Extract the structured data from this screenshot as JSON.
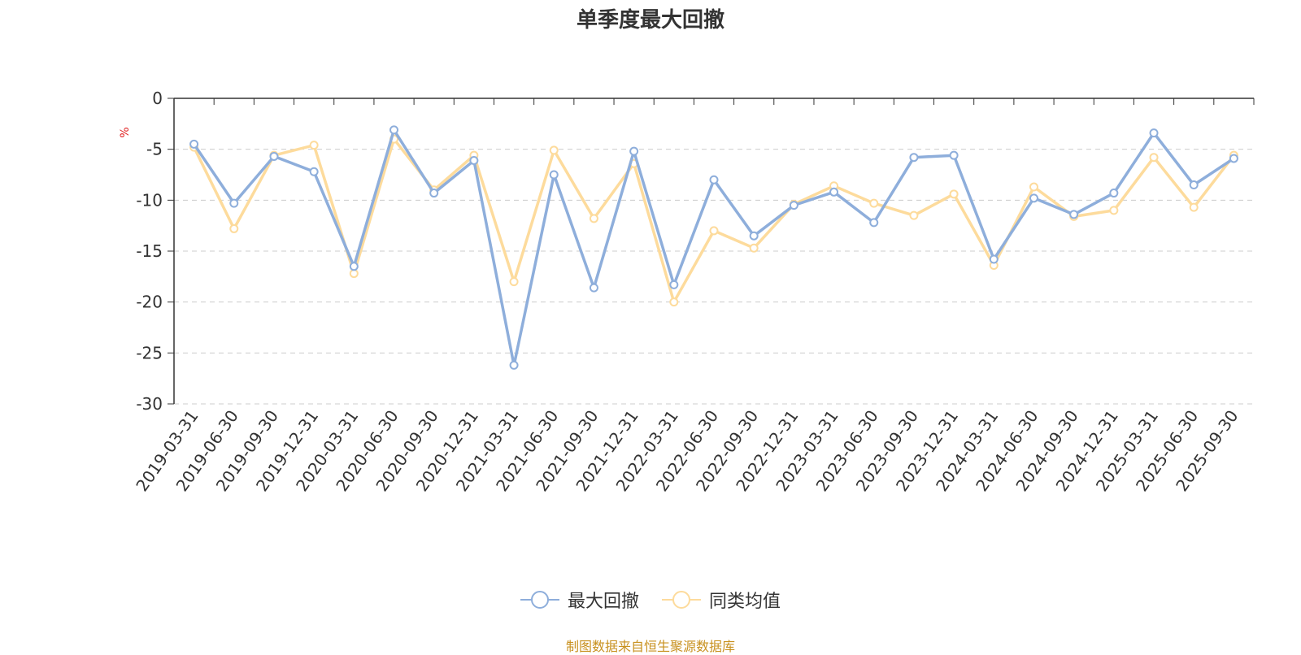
{
  "colors": {
    "series1": "#8eaedb",
    "series2": "#fddb9c",
    "axis": "#333333",
    "grid": "#cccccc",
    "unit": "#e02020",
    "source": "#c8911f"
  },
  "footer": {
    "source": "制图数据来自恒生聚源数据库"
  },
  "chart_data": {
    "type": "line",
    "title": "单季度最大回撤",
    "ylabel": "%",
    "ylim": [
      -30,
      0
    ],
    "yticks": [
      0,
      -5,
      -10,
      -15,
      -20,
      -25,
      -30
    ],
    "grid": true,
    "legend_position": "bottom",
    "categories": [
      "2019-03-31",
      "2019-06-30",
      "2019-09-30",
      "2019-12-31",
      "2020-03-31",
      "2020-06-30",
      "2020-09-30",
      "2020-12-31",
      "2021-03-31",
      "2021-06-30",
      "2021-09-30",
      "2021-12-31",
      "2022-03-31",
      "2022-06-30",
      "2022-09-30",
      "2022-12-31",
      "2023-03-31",
      "2023-06-30",
      "2023-09-30",
      "2023-12-31",
      "2024-03-31",
      "2024-06-30",
      "2024-09-30",
      "2024-12-31",
      "2025-03-31",
      "2025-06-30",
      "2025-09-30"
    ],
    "series": [
      {
        "name": "最大回撤",
        "values": [
          -4.5,
          -10.3,
          -5.7,
          -7.2,
          -16.5,
          -3.1,
          -9.3,
          -6.1,
          -26.2,
          -7.5,
          -18.6,
          -5.2,
          -18.3,
          -8.0,
          -13.5,
          -10.5,
          -9.2,
          -12.2,
          -5.8,
          -5.6,
          -15.8,
          -9.8,
          -11.4,
          -9.3,
          -3.4,
          -8.5,
          -5.9
        ]
      },
      {
        "name": "同类均值",
        "values": [
          -4.8,
          -12.8,
          -5.6,
          -4.6,
          -17.2,
          -4.0,
          -9.0,
          -5.6,
          -18.0,
          -5.1,
          -11.8,
          -6.4,
          -20.0,
          -13.0,
          -14.7,
          -10.4,
          -8.6,
          -10.3,
          -11.5,
          -9.4,
          -16.4,
          -8.7,
          -11.6,
          -11.0,
          -5.8,
          -10.7,
          -5.6
        ]
      }
    ]
  }
}
